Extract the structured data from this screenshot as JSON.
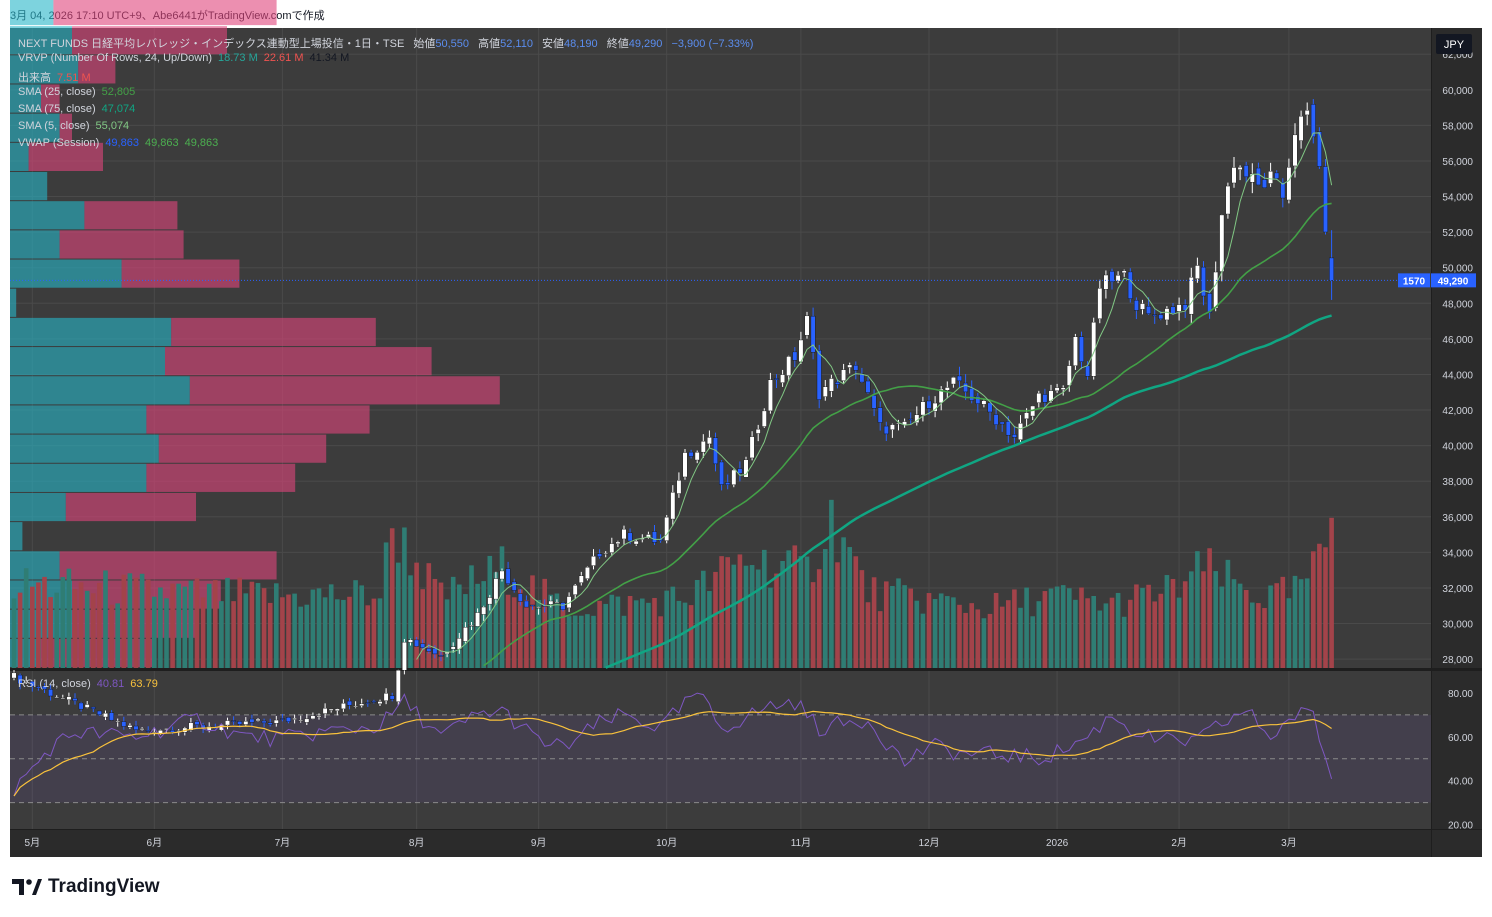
{
  "header": {
    "caption": "3月 04, 2026 17:10 UTC+9、Abe6441がTradingView.comで作成"
  },
  "footer": {
    "brand": "TradingView"
  },
  "currency_button": "JPY",
  "legend": {
    "title": "NEXT FUNDS 日経平均レバレッジ・インデックス連動型上場投信・1日・TSE",
    "open_label": "始値",
    "open": "50,550",
    "high_label": "高値",
    "high": "52,110",
    "low_label": "安値",
    "low": "48,190",
    "close_label": "終値",
    "close": "49,290",
    "change": "−3,900 (−7.33%)",
    "vrvp_label": "VRVP (Number Of Rows, 24, Up/Down)",
    "vrvp_up": "18.73 M",
    "vrvp_down": "22.61 M",
    "vrvp_total": "41.34 M",
    "volume_label": "出来高",
    "volume": "7.51 M",
    "sma25_label": "SMA (25, close)",
    "sma25": "52,805",
    "sma75_label": "SMA (75, close)",
    "sma75": "47,074",
    "sma5_label": "SMA (5, close)",
    "sma5": "55,074",
    "vwap_label": "VWAP (Session)",
    "vwap1": "49,863",
    "vwap2": "49,863",
    "vwap3": "49,863",
    "rsi_label": "RSI (14, close)",
    "rsi": "40.81",
    "rsi_ma": "63.79"
  },
  "price_tag": {
    "symbol": "1570",
    "price": "49,290"
  },
  "colors": {
    "bg": "#3c3c3c",
    "grid": "#4a4a4a",
    "up": "#ffffff",
    "down": "#2962ff",
    "vol_up": "#2f7d74",
    "vol_down": "#a3434a",
    "sma5": "#81c784",
    "sma25": "#43a047",
    "sma75": "#10a683",
    "rsi": "#7e57c2",
    "rsi_ma": "#f9c23c",
    "vp_up": "#26b5c8",
    "vp_down": "#e0457b"
  },
  "chart_data": {
    "type": "candlestick",
    "price_axis": {
      "ticks": [
        28000,
        30000,
        32000,
        34000,
        36000,
        38000,
        40000,
        42000,
        44000,
        46000,
        48000,
        50000,
        52000,
        54000,
        56000,
        58000,
        60000,
        62000
      ],
      "tick_labels": [
        "28,000",
        "30,000",
        "32,000",
        "34,000",
        "36,000",
        "38,000",
        "40,000",
        "42,000",
        "44,000",
        "46,000",
        "48,000",
        "50,000",
        "52,000",
        "54,000",
        "56,000",
        "58,000",
        "60,000",
        "62,000"
      ],
      "range": [
        27500,
        62800
      ]
    },
    "rsi_axis": {
      "ticks": [
        20,
        40,
        60,
        80
      ],
      "tick_labels": [
        "20.00",
        "40.00",
        "60.00",
        "80.00"
      ],
      "range": [
        18,
        90
      ],
      "bands": [
        30,
        70
      ]
    },
    "time_axis": {
      "labels": [
        "5月",
        "6月",
        "7月",
        "8月",
        "9月",
        "10月",
        "11月",
        "12月",
        "2026",
        "2月",
        "3月"
      ],
      "label_bar_index": [
        3,
        23,
        44,
        66,
        86,
        107,
        129,
        150,
        171,
        191,
        209
      ]
    },
    "price_path": [
      [
        0,
        27000
      ],
      [
        20,
        24000
      ],
      [
        44,
        24500
      ],
      [
        62,
        26000
      ],
      [
        64,
        29200
      ],
      [
        70,
        28200
      ],
      [
        76,
        30500
      ],
      [
        80,
        33000
      ],
      [
        84,
        31000
      ],
      [
        90,
        31000
      ],
      [
        96,
        34000
      ],
      [
        100,
        35000
      ],
      [
        106,
        34600
      ],
      [
        110,
        39500
      ],
      [
        114,
        40500
      ],
      [
        116,
        37500
      ],
      [
        120,
        39000
      ],
      [
        124,
        43500
      ],
      [
        128,
        45000
      ],
      [
        130,
        47000
      ],
      [
        132,
        43000
      ],
      [
        138,
        44500
      ],
      [
        142,
        41000
      ],
      [
        146,
        41000
      ],
      [
        150,
        42500
      ],
      [
        154,
        43500
      ],
      [
        158,
        42500
      ],
      [
        162,
        41200
      ],
      [
        164,
        40500
      ],
      [
        168,
        42800
      ],
      [
        172,
        43000
      ],
      [
        174,
        46000
      ],
      [
        176,
        44000
      ],
      [
        178,
        49000
      ],
      [
        182,
        49500
      ],
      [
        184,
        48000
      ],
      [
        186,
        47200
      ],
      [
        192,
        48000
      ],
      [
        194,
        50000
      ],
      [
        196,
        47200
      ],
      [
        198,
        53000
      ],
      [
        200,
        56000
      ],
      [
        204,
        54500
      ],
      [
        206,
        55000
      ],
      [
        208,
        54000
      ],
      [
        210,
        57800
      ],
      [
        212,
        58500
      ],
      [
        214,
        56000
      ],
      [
        215,
        51500
      ],
      [
        216,
        49290
      ]
    ],
    "volume_path": [
      [
        0,
        4.2
      ],
      [
        20,
        3.9
      ],
      [
        40,
        3.6
      ],
      [
        60,
        3.7
      ],
      [
        62,
        7.0
      ],
      [
        70,
        3.5
      ],
      [
        80,
        5.0
      ],
      [
        90,
        3.0
      ],
      [
        100,
        3.2
      ],
      [
        110,
        3.5
      ],
      [
        120,
        5.5
      ],
      [
        130,
        4.8
      ],
      [
        134,
        7.5
      ],
      [
        140,
        3.8
      ],
      [
        150,
        3.4
      ],
      [
        160,
        3.0
      ],
      [
        170,
        3.6
      ],
      [
        180,
        3.2
      ],
      [
        190,
        3.9
      ],
      [
        195,
        5.0
      ],
      [
        200,
        4.2
      ],
      [
        205,
        3.5
      ],
      [
        210,
        3.8
      ],
      [
        214,
        5.2
      ],
      [
        216,
        7.51
      ]
    ],
    "rsi_path": [
      [
        0,
        36
      ],
      [
        6,
        55
      ],
      [
        10,
        62
      ],
      [
        20,
        60
      ],
      [
        30,
        68
      ],
      [
        38,
        60
      ],
      [
        44,
        59
      ],
      [
        50,
        62
      ],
      [
        60,
        65
      ],
      [
        64,
        76
      ],
      [
        70,
        60
      ],
      [
        76,
        70
      ],
      [
        80,
        72
      ],
      [
        86,
        58
      ],
      [
        90,
        55
      ],
      [
        96,
        66
      ],
      [
        100,
        70
      ],
      [
        106,
        64
      ],
      [
        112,
        80
      ],
      [
        116,
        64
      ],
      [
        124,
        74
      ],
      [
        128,
        76
      ],
      [
        132,
        64
      ],
      [
        140,
        68
      ],
      [
        146,
        48
      ],
      [
        150,
        56
      ],
      [
        156,
        52
      ],
      [
        162,
        52
      ],
      [
        168,
        50
      ],
      [
        172,
        54
      ],
      [
        176,
        60
      ],
      [
        180,
        70
      ],
      [
        184,
        62
      ],
      [
        188,
        58
      ],
      [
        194,
        58
      ],
      [
        198,
        66
      ],
      [
        202,
        72
      ],
      [
        206,
        60
      ],
      [
        210,
        70
      ],
      [
        213,
        70
      ],
      [
        216,
        40.81
      ]
    ],
    "sma25_end": 52805,
    "sma75_end": 47074,
    "sma5_end": 55074,
    "volume_profile": {
      "row_count": 24,
      "row_height_price": 1640,
      "rows": [
        {
          "up": 0.05,
          "down": 0.18
        },
        {
          "up": 0.1,
          "down": 0.2
        },
        {
          "up": 0.1,
          "down": 0.24
        },
        {
          "up": 0.08,
          "down": 0.35
        },
        {
          "up": 0.02,
          "down": 0.0
        },
        {
          "up": 0.09,
          "down": 0.21
        },
        {
          "up": 0.22,
          "down": 0.24
        },
        {
          "up": 0.24,
          "down": 0.27
        },
        {
          "up": 0.22,
          "down": 0.36
        },
        {
          "up": 0.29,
          "down": 0.5
        },
        {
          "up": 0.25,
          "down": 0.43
        },
        {
          "up": 0.26,
          "down": 0.33
        },
        {
          "up": 0.01,
          "down": 0.0
        },
        {
          "up": 0.18,
          "down": 0.19
        },
        {
          "up": 0.08,
          "down": 0.2
        },
        {
          "up": 0.12,
          "down": 0.15
        },
        {
          "up": 0.06,
          "down": 0.0
        },
        {
          "up": 0.03,
          "down": 0.12
        },
        {
          "up": 0.08,
          "down": 0.02
        },
        {
          "up": 0.05,
          "down": 0.03
        },
        {
          "up": 0.11,
          "down": 0.06
        },
        {
          "up": 0.1,
          "down": 0.25
        },
        {
          "up": 0.07,
          "down": 0.36
        },
        {
          "up": 0.1,
          "down": 0.43
        }
      ]
    }
  }
}
